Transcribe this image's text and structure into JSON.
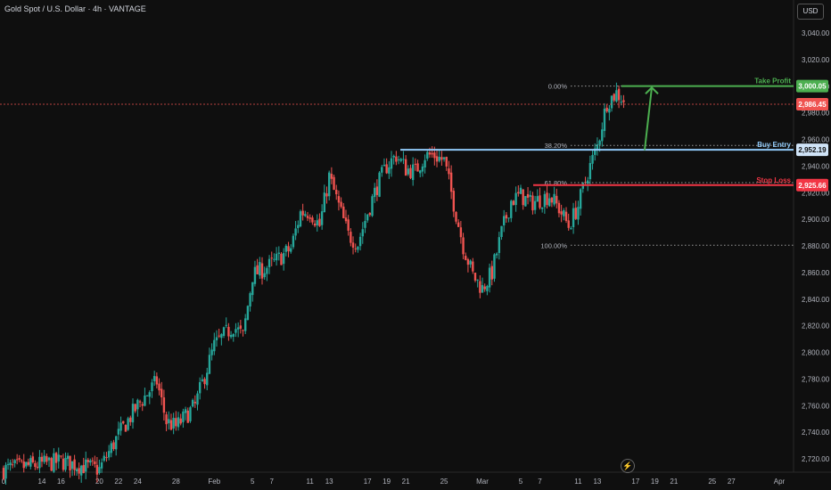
{
  "header": {
    "title": "Gold Spot / U.S. Dollar · 4h · VANTAGE",
    "currency": "USD"
  },
  "colors": {
    "bg": "#0f0f0f",
    "up": "#26a69a",
    "down": "#ef5350",
    "grid": "#1b1b1b",
    "take_profit": "#4caf50",
    "buy_entry": "#90caf9",
    "stop_loss": "#f23645"
  },
  "icons": {
    "replay": "lightning-bolt-icon"
  },
  "chart_data": {
    "type": "candlestick",
    "symbol": "Gold Spot / U.S. Dollar",
    "interval": "4h",
    "ylim": [
      2710,
      3060
    ],
    "y_ticks": [
      2720,
      2740,
      2760,
      2780,
      2800,
      2820,
      2840,
      2860,
      2880,
      2900,
      2920,
      2940,
      2960,
      2980,
      3000,
      3020,
      3040
    ],
    "y_tick_labels": [
      "2,720.00",
      "2,740.00",
      "2,760.00",
      "2,780.00",
      "2,800.00",
      "2,820.00",
      "2,840.00",
      "2,860.00",
      "2,880.00",
      "2,900.00",
      "2,920.00",
      "2,940.00",
      "2,960.00",
      "2,980.00",
      "3,000.00",
      "3,020.00",
      "3,040.00"
    ],
    "x_ticks": [
      "Jan 10",
      "Jan 14",
      "Jan 16",
      "Jan 20",
      "Jan 22",
      "Jan 24",
      "Jan 28",
      "Feb 1",
      "Feb 5",
      "Feb 7",
      "Feb 11",
      "Feb 13",
      "Feb 17",
      "Feb 19",
      "Feb 21",
      "Feb 25",
      "Mar 1",
      "Mar 5",
      "Mar 7",
      "Mar 11",
      "Mar 13",
      "Mar 17",
      "Mar 19",
      "Mar 21",
      "Mar 25",
      "Mar 27",
      "Apr 1"
    ],
    "x_tick_labels": [
      "0",
      "14",
      "16",
      "20",
      "22",
      "24",
      "28",
      "Feb",
      "5",
      "7",
      "11",
      "13",
      "17",
      "19",
      "21",
      "25",
      "Mar",
      "5",
      "7",
      "11",
      "13",
      "17",
      "19",
      "21",
      "25",
      "27",
      "Apr"
    ],
    "close_path": [
      [
        "Jan 10",
        2712
      ],
      [
        "Jan 14",
        2716
      ],
      [
        "Jan 16",
        2718
      ],
      [
        "Jan 20",
        2712
      ],
      [
        "Jan 22",
        2738
      ],
      [
        "Jan 24",
        2760
      ],
      [
        "Jan 26",
        2778
      ],
      [
        "Jan 27",
        2748
      ],
      [
        "Jan 28",
        2744
      ],
      [
        "Jan 30",
        2760
      ],
      [
        "Feb 1",
        2805
      ],
      [
        "Feb 3",
        2820
      ],
      [
        "Feb 4",
        2812
      ],
      [
        "Feb 5",
        2858
      ],
      [
        "Feb 7",
        2866
      ],
      [
        "Feb 9",
        2878
      ],
      [
        "Feb 10",
        2905
      ],
      [
        "Feb 11",
        2906
      ],
      [
        "Feb 12",
        2895
      ],
      [
        "Feb 13",
        2932
      ],
      [
        "Feb 15",
        2888
      ],
      [
        "Feb 16",
        2882
      ],
      [
        "Feb 17",
        2905
      ],
      [
        "Feb 18",
        2925
      ],
      [
        "Feb 19",
        2940
      ],
      [
        "Feb 20",
        2948
      ],
      [
        "Feb 21",
        2938
      ],
      [
        "Feb 22",
        2936
      ],
      [
        "Feb 23",
        2948
      ],
      [
        "Feb 24",
        2948
      ],
      [
        "Feb 25",
        2944
      ],
      [
        "Feb 26",
        2912
      ],
      [
        "Feb 27",
        2880
      ],
      [
        "Feb 28",
        2858
      ],
      [
        "Mar 1",
        2848
      ],
      [
        "Mar 2",
        2860
      ],
      [
        "Mar 3",
        2890
      ],
      [
        "Mar 4",
        2914
      ],
      [
        "Mar 5",
        2918
      ],
      [
        "Mar 6",
        2912
      ],
      [
        "Mar 7",
        2915
      ],
      [
        "Mar 8",
        2918
      ],
      [
        "Mar 9",
        2908
      ],
      [
        "Mar 10",
        2895
      ],
      [
        "Mar 11",
        2910
      ],
      [
        "Mar 12",
        2935
      ],
      [
        "Mar 13",
        2955
      ],
      [
        "Mar 14",
        2988
      ],
      [
        "Mar 15",
        2995
      ],
      [
        "Mar 16",
        2988
      ]
    ],
    "current_price": {
      "value": 2986.45,
      "label": "2,986.45"
    },
    "fibonacci": [
      {
        "label": "0.00%",
        "value": 3000.05
      },
      {
        "label": "38.20%",
        "value": 2955.5
      },
      {
        "label": "61.80%",
        "value": 2927.5
      },
      {
        "label": "100.00%",
        "value": 2880.5
      }
    ],
    "levels": [
      {
        "name": "Take Profit",
        "value": 3000.05,
        "label": "3,000.05",
        "color": "#4caf50"
      },
      {
        "name": "Buy Entry",
        "value": 2952.19,
        "label": "2,952.19",
        "color": "#90caf9"
      },
      {
        "name": "Stop Loss",
        "value": 2925.66,
        "label": "2,925.66",
        "color": "#f23645"
      }
    ],
    "arrow": {
      "from": [
        "Mar 16",
        2952
      ],
      "to": [
        "Mar 18",
        2999
      ]
    },
    "grid": false
  }
}
